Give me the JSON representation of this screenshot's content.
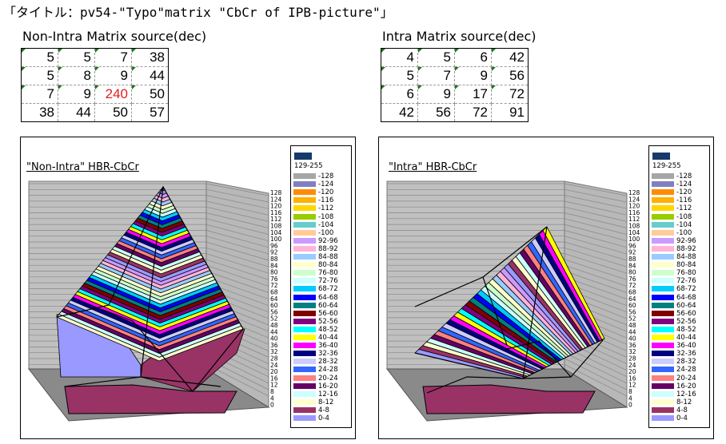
{
  "title": "「タイトル：pv54-\"Typo\"matrix \"CbCr of IPB-picture\"」",
  "matrices": [
    {
      "title": "Non-Intra Matrix source(dec)",
      "rows": [
        [
          5,
          5,
          7,
          38
        ],
        [
          5,
          8,
          9,
          44
        ],
        [
          7,
          9,
          240,
          50
        ],
        [
          38,
          44,
          50,
          57
        ]
      ],
      "highlight": [
        2,
        2
      ]
    },
    {
      "title": "Intra Matrix source(dec)",
      "rows": [
        [
          4,
          5,
          6,
          42
        ],
        [
          5,
          7,
          9,
          56
        ],
        [
          6,
          9,
          17,
          72
        ],
        [
          42,
          56,
          72,
          91
        ]
      ],
      "highlight": null
    }
  ],
  "legend": {
    "top": {
      "label": "129-255",
      "color": "#163a6b"
    },
    "items": [
      {
        "label": "-128",
        "color": "#a6a6a6"
      },
      {
        "label": "-124",
        "color": "#8080c0"
      },
      {
        "label": "-120",
        "color": "#ff8c00"
      },
      {
        "label": "-116",
        "color": "#ffb000"
      },
      {
        "label": "-112",
        "color": "#ffd700"
      },
      {
        "label": "-108",
        "color": "#99cc00"
      },
      {
        "label": "-104",
        "color": "#66cccc"
      },
      {
        "label": "-100",
        "color": "#ffcc99"
      },
      {
        "label": "92-96",
        "color": "#cc99ff"
      },
      {
        "label": "88-92",
        "color": "#ffb3d9"
      },
      {
        "label": "84-88",
        "color": "#99ccff"
      },
      {
        "label": "80-84",
        "color": "#ffffcc"
      },
      {
        "label": "76-80",
        "color": "#ccffcc"
      },
      {
        "label": "72-76",
        "color": "#ccffff"
      },
      {
        "label": "68-72",
        "color": "#00ccff"
      },
      {
        "label": "64-68",
        "color": "#0000ff"
      },
      {
        "label": "60-64",
        "color": "#008080"
      },
      {
        "label": "56-60",
        "color": "#800000"
      },
      {
        "label": "52-56",
        "color": "#800080"
      },
      {
        "label": "48-52",
        "color": "#00ffff"
      },
      {
        "label": "40-44",
        "color": "#ffff00"
      },
      {
        "label": "36-40",
        "color": "#ff00ff"
      },
      {
        "label": "32-36",
        "color": "#000080"
      },
      {
        "label": "28-32",
        "color": "#ccccff"
      },
      {
        "label": "24-28",
        "color": "#3366ff"
      },
      {
        "label": "20-24",
        "color": "#ff8080"
      },
      {
        "label": "16-20",
        "color": "#660066"
      },
      {
        "label": "12-16",
        "color": "#ccffff"
      },
      {
        "label": "8-12",
        "color": "#ffffcc"
      },
      {
        "label": "4-8",
        "color": "#993366"
      },
      {
        "label": "0-4",
        "color": "#9999ff"
      }
    ]
  },
  "chart_data": [
    {
      "type": "surface",
      "title": "\"Non-Intra\" HBR-CbCr",
      "z_ticks": [
        "128",
        "124",
        "120",
        "116",
        "112",
        "108",
        "104",
        "100",
        "96",
        "92",
        "88",
        "84",
        "80",
        "76",
        "72",
        "68",
        "64",
        "60",
        "56",
        "52",
        "48",
        "44",
        "40",
        "36",
        "32",
        "28",
        "24",
        "20",
        "16",
        "12",
        "8",
        "4",
        "0"
      ],
      "zlim": [
        0,
        128
      ]
    },
    {
      "type": "surface",
      "title": "\"Intra\" HBR-CbCr",
      "z_ticks": [
        "128",
        "124",
        "120",
        "116",
        "112",
        "108",
        "104",
        "100",
        "96",
        "92",
        "88",
        "84",
        "80",
        "76",
        "72",
        "68",
        "64",
        "60",
        "56",
        "52",
        "48",
        "44",
        "40",
        "36",
        "32",
        "28",
        "24",
        "20",
        "16",
        "12",
        "8",
        "4",
        "0"
      ],
      "zlim": [
        0,
        128
      ]
    }
  ]
}
